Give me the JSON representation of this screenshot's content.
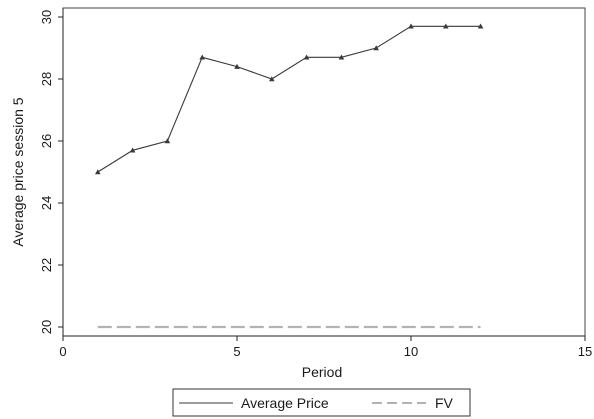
{
  "chart_data": {
    "type": "line",
    "xlabel": "Period",
    "ylabel": "Average price session 5",
    "xlim": [
      0,
      15
    ],
    "ylim": [
      20,
      30
    ],
    "xticks": [
      0,
      5,
      10,
      15
    ],
    "yticks": [
      20,
      22,
      24,
      26,
      28,
      30
    ],
    "grid": false,
    "legend_position": "bottom",
    "series": [
      {
        "name": "Average Price",
        "style": "solid",
        "marker": "triangle",
        "color": "#3a3a3a",
        "x": [
          1,
          2,
          3,
          4,
          5,
          6,
          7,
          8,
          9,
          10,
          11,
          12
        ],
        "y": [
          25.0,
          25.7,
          26.0,
          28.7,
          28.4,
          28.0,
          28.7,
          28.7,
          29.0,
          29.7,
          29.7,
          29.7
        ]
      },
      {
        "name": "FV",
        "style": "dashed",
        "color": "#b3b3b3",
        "x": [
          1,
          12
        ],
        "y": [
          20,
          20
        ]
      }
    ]
  }
}
